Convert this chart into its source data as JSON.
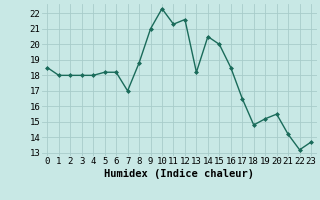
{
  "x": [
    0,
    1,
    2,
    3,
    4,
    5,
    6,
    7,
    8,
    9,
    10,
    11,
    12,
    13,
    14,
    15,
    16,
    17,
    18,
    19,
    20,
    21,
    22,
    23
  ],
  "y": [
    18.5,
    18.0,
    18.0,
    18.0,
    18.0,
    18.2,
    18.2,
    17.0,
    18.8,
    21.0,
    22.3,
    21.3,
    21.6,
    18.2,
    20.5,
    20.0,
    18.5,
    16.5,
    14.8,
    15.2,
    15.5,
    14.2,
    13.2,
    13.7
  ],
  "line_color": "#1a6b5a",
  "marker": "D",
  "markersize": 2.0,
  "linewidth": 1.0,
  "xlabel": "Humidex (Indice chaleur)",
  "ylim": [
    12.8,
    22.6
  ],
  "yticks": [
    13,
    14,
    15,
    16,
    17,
    18,
    19,
    20,
    21,
    22
  ],
  "xticks": [
    0,
    1,
    2,
    3,
    4,
    5,
    6,
    7,
    8,
    9,
    10,
    11,
    12,
    13,
    14,
    15,
    16,
    17,
    18,
    19,
    20,
    21,
    22,
    23
  ],
  "background_color": "#c8e8e5",
  "grid_color": "#a8ccca",
  "xlabel_fontsize": 7.5,
  "tick_fontsize": 6.5
}
